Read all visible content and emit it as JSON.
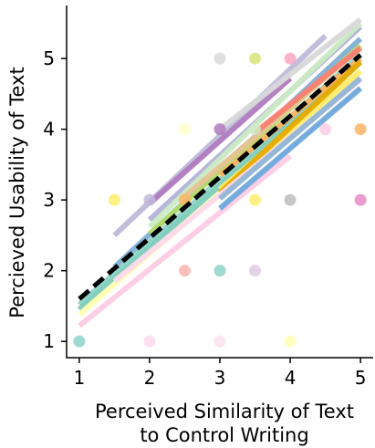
{
  "chart_data": {
    "type": "scatter",
    "title": "",
    "xlabel_lines": [
      "Perceived Similarity of Text",
      "to Control Writing"
    ],
    "ylabel": "Percieved Usability of Text",
    "xlim": [
      0.82,
      5.18
    ],
    "ylim": [
      0.77,
      5.75
    ],
    "xticks": [
      1,
      2,
      3,
      4,
      5
    ],
    "yticks": [
      1,
      2,
      3,
      4,
      5
    ],
    "grid": false,
    "points": [
      {
        "x": 1,
        "y": 1,
        "color": "#8dd3c7"
      },
      {
        "x": 2,
        "y": 1,
        "color": "#fddaec"
      },
      {
        "x": 3,
        "y": 1,
        "color": "#fde0ef"
      },
      {
        "x": 4,
        "y": 1,
        "color": "#ffffb3"
      },
      {
        "x": 2.5,
        "y": 2,
        "color": "#fbb4ae"
      },
      {
        "x": 3,
        "y": 2,
        "color": "#8dd3c7"
      },
      {
        "x": 3.5,
        "y": 2,
        "color": "#decbe4"
      },
      {
        "x": 1.5,
        "y": 3,
        "color": "#ffed6f"
      },
      {
        "x": 2,
        "y": 3,
        "color": "#bebada"
      },
      {
        "x": 2.5,
        "y": 3,
        "color": "#fdb462"
      },
      {
        "x": 3.5,
        "y": 3,
        "color": "#ffed6f"
      },
      {
        "x": 4,
        "y": 3,
        "color": "#bdbdbd"
      },
      {
        "x": 5,
        "y": 3,
        "color": "#e78ac3"
      },
      {
        "x": 2.5,
        "y": 4,
        "color": "#ffffcc"
      },
      {
        "x": 3,
        "y": 4,
        "color": "#b07bc0"
      },
      {
        "x": 3.5,
        "y": 4,
        "color": "#ccebc5"
      },
      {
        "x": 4.5,
        "y": 4,
        "color": "#fccde5"
      },
      {
        "x": 5,
        "y": 4,
        "color": "#fdb462"
      },
      {
        "x": 3,
        "y": 5,
        "color": "#d9d9d9"
      },
      {
        "x": 3.5,
        "y": 5,
        "color": "#d9e37a"
      },
      {
        "x": 4,
        "y": 5,
        "color": "#f9a7c6"
      }
    ],
    "fit_lines": [
      {
        "x": [
          1.5,
          4.5
        ],
        "y": [
          2.5,
          5.32
        ],
        "color": "#bebada"
      },
      {
        "x": [
          2.0,
          5.0
        ],
        "y": [
          2.72,
          5.45
        ],
        "color": "#b3b3d9"
      },
      {
        "x": [
          2.0,
          4.0
        ],
        "y": [
          2.95,
          4.72
        ],
        "color": "#b07bc0"
      },
      {
        "x": [
          2.0,
          5.0
        ],
        "y": [
          2.62,
          5.5
        ],
        "color": "#ccebc5"
      },
      {
        "x": [
          3.0,
          5.0
        ],
        "y": [
          4.0,
          5.55
        ],
        "color": "#d9d9d9"
      },
      {
        "x": [
          1.5,
          5.0
        ],
        "y": [
          2.05,
          5.28
        ],
        "color": "#80b1d3"
      },
      {
        "x": [
          1.0,
          5.0
        ],
        "y": [
          1.52,
          5.05
        ],
        "color": "#8dd3c7"
      },
      {
        "x": [
          1.0,
          5.0
        ],
        "y": [
          1.45,
          4.95
        ],
        "color": "#7fcdbb"
      },
      {
        "x": [
          2.0,
          5.0
        ],
        "y": [
          2.52,
          5.18
        ],
        "color": "#b3de69"
      },
      {
        "x": [
          2.5,
          5.0
        ],
        "y": [
          3.05,
          5.15
        ],
        "color": "#e5c494"
      },
      {
        "x": [
          3.5,
          5.0
        ],
        "y": [
          3.95,
          5.15
        ],
        "color": "#fb8072"
      },
      {
        "x": [
          3.0,
          5.0
        ],
        "y": [
          3.35,
          5.0
        ],
        "color": "#fdb462"
      },
      {
        "x": [
          1.0,
          5.0
        ],
        "y": [
          1.38,
          4.82
        ],
        "color": "#ffffb3"
      },
      {
        "x": [
          3.0,
          5.0
        ],
        "y": [
          3.15,
          4.82
        ],
        "color": "#ffed6f"
      },
      {
        "x": [
          3.0,
          5.0
        ],
        "y": [
          3.1,
          4.95
        ],
        "color": "#e6ab02"
      },
      {
        "x": [
          1.0,
          4.0
        ],
        "y": [
          1.22,
          3.62
        ],
        "color": "#fccde5"
      },
      {
        "x": [
          1.5,
          5.0
        ],
        "y": [
          1.85,
          4.7
        ],
        "color": "#fddaec"
      },
      {
        "x": [
          3.0,
          5.0
        ],
        "y": [
          3.02,
          4.72
        ],
        "color": "#92b6d5"
      },
      {
        "x": [
          3.0,
          5.0
        ],
        "y": [
          2.88,
          4.58
        ],
        "color": "#6fa8dc"
      }
    ],
    "overall_fit": {
      "x": [
        1.0,
        5.0
      ],
      "y": [
        1.6,
        5.05
      ],
      "color": "#000000",
      "style": "dashed"
    }
  }
}
